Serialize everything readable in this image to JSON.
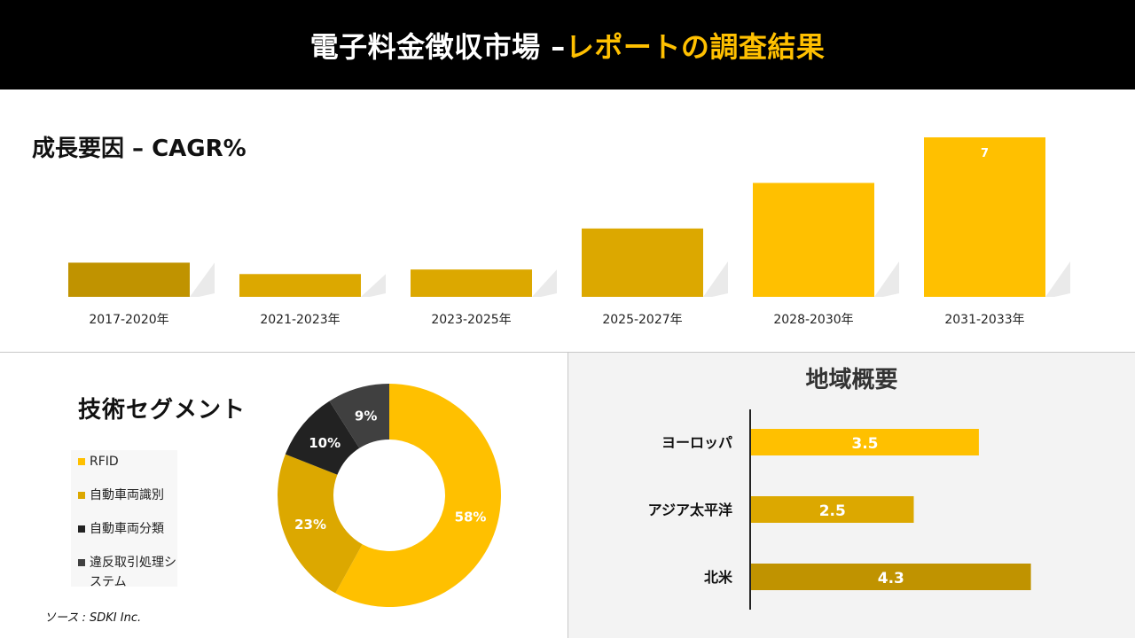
{
  "header": {
    "title_white": "電子料金徴収市場 – ",
    "title_yellow": "レポートの調査結果"
  },
  "growth": {
    "title": "成長要因 – CAGR%"
  },
  "tech": {
    "title": "技術セグメント"
  },
  "region": {
    "title": "地域概要"
  },
  "source": "ソース : SDKI Inc.",
  "colors": {
    "yellow": "#FFC000",
    "gold": "#DCA800",
    "dark_gold": "#C09300",
    "black": "#222222",
    "dark_gray": "#404040"
  },
  "chart_data": [
    {
      "type": "bar",
      "title": "成長要因 – CAGR%",
      "categories": [
        "2017-2020年",
        "2021-2023年",
        "2023-2025年",
        "2025-2027年",
        "2028-2030年",
        "2031-2033年"
      ],
      "values": [
        1.5,
        1.0,
        1.2,
        3.0,
        5.0,
        7
      ],
      "data_labels": [
        "",
        "",
        "",
        "",
        "",
        "7"
      ],
      "bar_colors": [
        "#C09300",
        "#DCA800",
        "#DCA800",
        "#DCA800",
        "#FFC000",
        "#FFC000"
      ],
      "ylim": [
        0,
        7
      ]
    },
    {
      "type": "pie",
      "title": "技術セグメント",
      "categories": [
        "RFID",
        "自動車両識別",
        "自動車両分類",
        "違反取引処理システム"
      ],
      "values": [
        58,
        23,
        10,
        9
      ],
      "data_labels": [
        "58%",
        "23%",
        "10%",
        "9%"
      ],
      "colors": [
        "#FFC000",
        "#DCA800",
        "#222222",
        "#404040"
      ],
      "legend": "left"
    },
    {
      "type": "bar",
      "orientation": "horizontal",
      "title": "地域概要",
      "categories": [
        "ヨーロッパ",
        "アジア太平洋",
        "北米"
      ],
      "values": [
        3.5,
        2.5,
        4.3
      ],
      "data_labels": [
        "3.5",
        "2.5",
        "4.3"
      ],
      "bar_colors": [
        "#FFC000",
        "#DCA800",
        "#C09300"
      ]
    }
  ]
}
